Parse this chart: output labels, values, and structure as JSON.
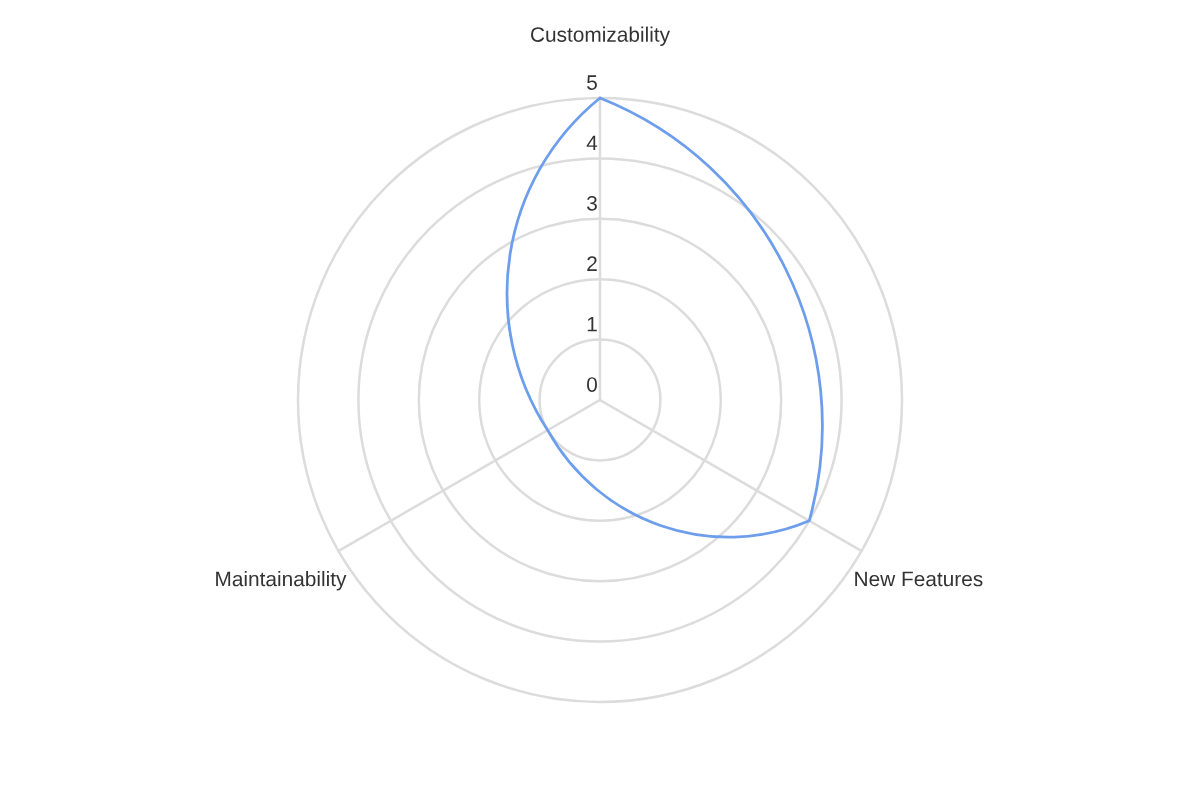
{
  "chart_data": {
    "type": "radar",
    "categories": [
      "Customizability",
      "New Features",
      "Maintainability"
    ],
    "series": [
      {
        "color": "#6d9eeb",
        "values": [
          5,
          4,
          1
        ]
      }
    ],
    "ylim": [
      0,
      5
    ],
    "yticks": [
      0,
      1,
      2,
      3,
      4,
      5
    ],
    "grid": true,
    "line_style": "solid"
  }
}
